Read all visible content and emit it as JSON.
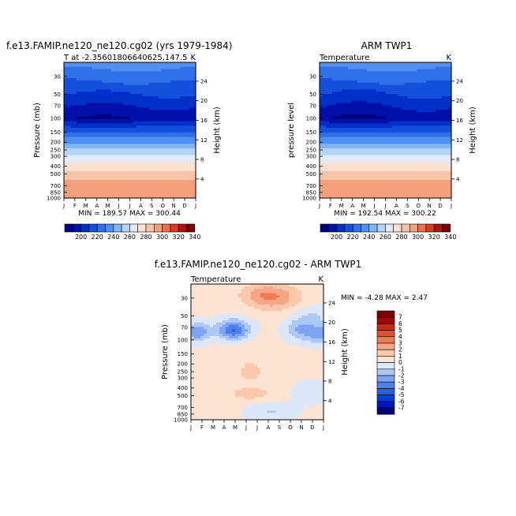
{
  "chart_data": [
    {
      "type": "heatmap",
      "title": "f.e13.FAMIP.ne120_ne120.cg02 (yrs 1979-1984)",
      "subtitle_left": "T at -2.35601806640625,147.5",
      "subtitle_right": "K",
      "xlabel": "",
      "ylabel": "Pressure (mb)",
      "ylabel_right": "Height (km)",
      "months": [
        "J",
        "F",
        "M",
        "A",
        "M",
        "J",
        "J",
        "A",
        "S",
        "O",
        "N",
        "D",
        "J"
      ],
      "pressure_ticks": [
        "30",
        "50",
        "70",
        "100",
        "150",
        "200",
        "250",
        "300",
        "400",
        "500",
        "700",
        "850",
        "1000"
      ],
      "height_ticks": [
        "24",
        "20",
        "16",
        "12",
        "8",
        "4"
      ],
      "stats": "MIN = 189.57  MAX = 300.44",
      "min": 189.57,
      "max": 300.44,
      "levels": [
        200,
        220,
        240,
        260,
        280,
        300,
        320,
        340
      ]
    },
    {
      "type": "heatmap",
      "title": "ARM TWP1",
      "subtitle_left": "Temperature",
      "subtitle_right": "K",
      "xlabel": "",
      "ylabel": "pressure level",
      "ylabel_right": "Height (km)",
      "months": [
        "J",
        "F",
        "M",
        "A",
        "M",
        "J",
        "J",
        "A",
        "S",
        "O",
        "N",
        "D",
        "J"
      ],
      "pressure_ticks": [
        "30",
        "50",
        "70",
        "100",
        "150",
        "200",
        "250",
        "300",
        "400",
        "500",
        "700",
        "850",
        "1000"
      ],
      "height_ticks": [
        "24",
        "20",
        "16",
        "12",
        "8",
        "4"
      ],
      "stats": "MIN = 192.54  MAX = 300.22",
      "min": 192.54,
      "max": 300.22,
      "levels": [
        200,
        220,
        240,
        260,
        280,
        300,
        320,
        340
      ]
    },
    {
      "type": "heatmap",
      "title": "f.e13.FAMIP.ne120_ne120.cg02 - ARM TWP1",
      "subtitle_left": "Temperature",
      "subtitle_right": "K",
      "xlabel": "",
      "ylabel": "Pressure (mb)",
      "ylabel_right": "Height (km)",
      "months": [
        "J",
        "F",
        "M",
        "A",
        "M",
        "J",
        "J",
        "A",
        "S",
        "O",
        "N",
        "D",
        "J"
      ],
      "pressure_ticks": [
        "30",
        "50",
        "70",
        "100",
        "150",
        "200",
        "250",
        "300",
        "400",
        "500",
        "700",
        "850",
        "1000"
      ],
      "height_ticks": [
        "24",
        "20",
        "16",
        "12",
        "8",
        "4"
      ],
      "stats": "MIN =   -4.28  MAX =    2.47",
      "min": -4.28,
      "max": 2.47,
      "levels": [
        7,
        6,
        5,
        4,
        3,
        2,
        1,
        0,
        -1,
        -2,
        -3,
        -4,
        -5,
        -6,
        -7
      ]
    }
  ],
  "colors": {
    "abs_scale": [
      "#00007f",
      "#0010a8",
      "#0030c8",
      "#1450dc",
      "#3070e8",
      "#5090f0",
      "#80b4f4",
      "#b4d4f8",
      "#e0ecfa",
      "#fbe2d2",
      "#f8c4a8",
      "#f4a07c",
      "#e8704c",
      "#d43c24",
      "#b01410",
      "#7c0000"
    ],
    "diff_scale": [
      "#00007f",
      "#0018b0",
      "#0a3cd4",
      "#2860e4",
      "#4c80ec",
      "#7ca4f2",
      "#acc8f6",
      "#dce8fa",
      "#fde4d2",
      "#fbc8ac",
      "#f6a684",
      "#ee7c58",
      "#e0502e",
      "#c42a16",
      "#9c0808",
      "#7c0000"
    ]
  }
}
